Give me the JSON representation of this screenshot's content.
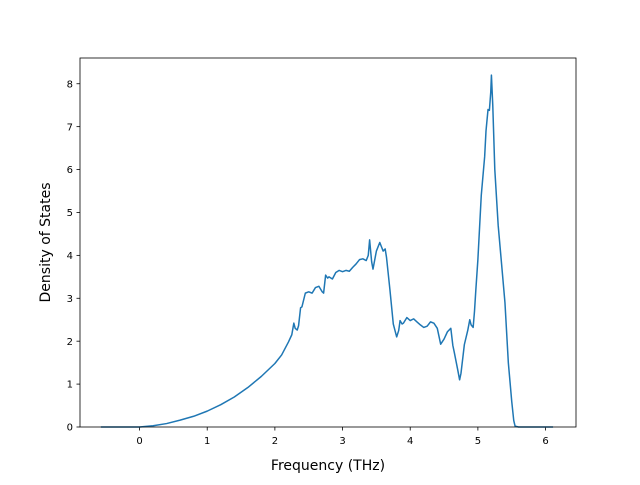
{
  "chart_data": {
    "type": "line",
    "title": "",
    "xlabel": "Frequency (THz)",
    "ylabel": "Density of States",
    "xlim": [
      -0.88,
      6.45
    ],
    "ylim": [
      0,
      8.6
    ],
    "xticks": [
      0,
      1,
      2,
      3,
      4,
      5,
      6
    ],
    "yticks": [
      0,
      1,
      2,
      3,
      4,
      5,
      6,
      7,
      8
    ],
    "grid": false,
    "legend": "none",
    "line_color": "#1f77b4",
    "series": [
      {
        "x": [
          -0.56,
          -0.3,
          0.0,
          0.2,
          0.4,
          0.6,
          0.8,
          1.0,
          1.2,
          1.4,
          1.6,
          1.8,
          2.0,
          2.1,
          2.2,
          2.25,
          2.28,
          2.3,
          2.33,
          2.35,
          2.38,
          2.4,
          2.45,
          2.5,
          2.55,
          2.6,
          2.65,
          2.7,
          2.72,
          2.75,
          2.78,
          2.8,
          2.85,
          2.9,
          2.95,
          3.0,
          3.05,
          3.1,
          3.15,
          3.2,
          3.25,
          3.3,
          3.35,
          3.38,
          3.4,
          3.43,
          3.45,
          3.5,
          3.55,
          3.58,
          3.6,
          3.63,
          3.65,
          3.7,
          3.75,
          3.8,
          3.83,
          3.85,
          3.88,
          3.9,
          3.95,
          4.0,
          4.05,
          4.1,
          4.15,
          4.2,
          4.25,
          4.3,
          4.35,
          4.4,
          4.45,
          4.5,
          4.55,
          4.6,
          4.63,
          4.65,
          4.7,
          4.73,
          4.75,
          4.78,
          4.8,
          4.85,
          4.88,
          4.9,
          4.93,
          4.95,
          4.97,
          5.0,
          5.05,
          5.1,
          5.12,
          5.15,
          5.17,
          5.19,
          5.2,
          5.22,
          5.25,
          5.3,
          5.35,
          5.4,
          5.45,
          5.5,
          5.53,
          5.55,
          5.6,
          5.7,
          6.1
        ],
        "y": [
          0.0,
          0.0,
          0.0,
          0.03,
          0.08,
          0.16,
          0.25,
          0.37,
          0.52,
          0.7,
          0.92,
          1.18,
          1.48,
          1.68,
          1.98,
          2.15,
          2.42,
          2.3,
          2.26,
          2.36,
          2.78,
          2.8,
          3.12,
          3.15,
          3.12,
          3.25,
          3.28,
          3.15,
          3.12,
          3.54,
          3.47,
          3.5,
          3.45,
          3.6,
          3.65,
          3.62,
          3.65,
          3.63,
          3.72,
          3.8,
          3.9,
          3.92,
          3.88,
          4.0,
          4.36,
          3.85,
          3.68,
          4.1,
          4.3,
          4.18,
          4.1,
          4.15,
          3.95,
          3.2,
          2.4,
          2.1,
          2.25,
          2.48,
          2.4,
          2.42,
          2.55,
          2.48,
          2.52,
          2.45,
          2.38,
          2.32,
          2.35,
          2.45,
          2.42,
          2.3,
          1.93,
          2.05,
          2.22,
          2.3,
          1.9,
          1.75,
          1.35,
          1.1,
          1.25,
          1.65,
          1.92,
          2.25,
          2.5,
          2.38,
          2.32,
          2.7,
          3.2,
          3.9,
          5.4,
          6.3,
          6.9,
          7.4,
          7.38,
          7.8,
          8.2,
          7.5,
          6.0,
          4.7,
          3.8,
          2.9,
          1.5,
          0.6,
          0.15,
          0.02,
          0.0,
          0.0,
          0.0
        ]
      }
    ]
  }
}
